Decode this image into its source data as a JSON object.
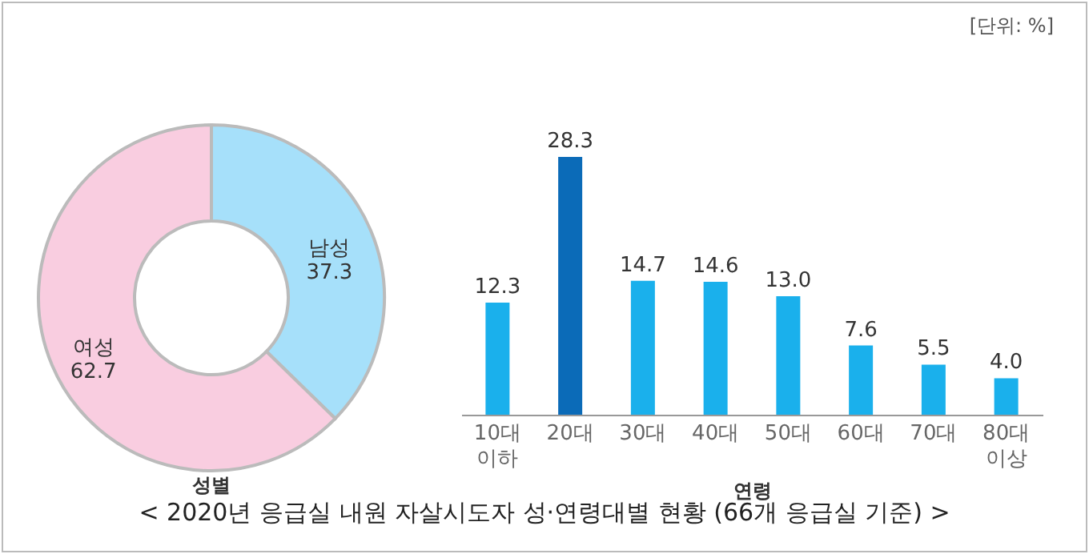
{
  "chart_data": [
    {
      "type": "donut",
      "xlabel": "성별",
      "categories": [
        "남성",
        "여성"
      ],
      "values": [
        37.3,
        62.7
      ],
      "colors": [
        "#a6e0fa",
        "#f9cde0"
      ],
      "data_labels": true
    },
    {
      "type": "bar",
      "xlabel": "연령",
      "categories": [
        "10대 이하",
        "20대",
        "30대",
        "40대",
        "50대",
        "60대",
        "70대",
        "80대 이상"
      ],
      "values": [
        12.3,
        28.3,
        14.7,
        14.6,
        13.0,
        7.6,
        5.5,
        4.0
      ],
      "colors": [
        "#1ab0ec",
        "#0b6bb8",
        "#1ab0ec",
        "#1ab0ec",
        "#1ab0ec",
        "#1ab0ec",
        "#1ab0ec",
        "#1ab0ec"
      ],
      "value_labels": [
        "12.3",
        "28.3",
        "14.7",
        "14.6",
        "13.0",
        "7.6",
        "5.5",
        "4.0"
      ],
      "annotations": [
        "[단위: %]",
        "< 2020년 응급실 내원 자살시도자 성·연령대별 현황 (66개 응급실 기준) >"
      ]
    }
  ]
}
